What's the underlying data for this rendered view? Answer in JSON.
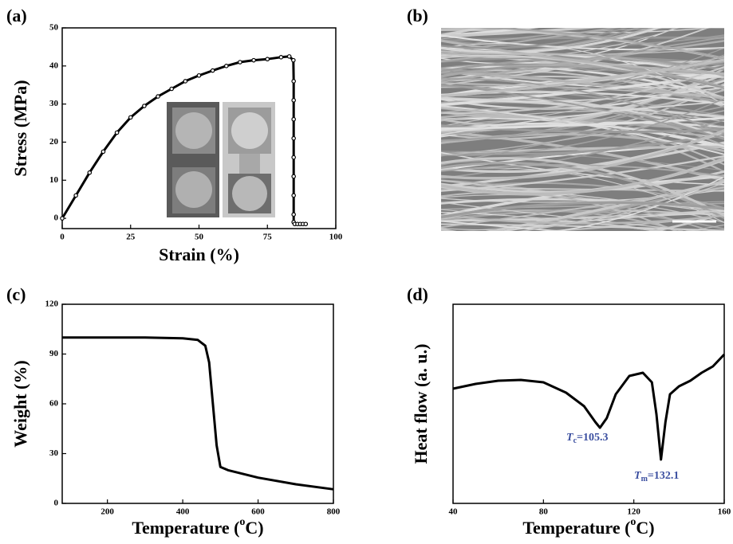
{
  "chart_data": [
    {
      "type": "line",
      "panel": "(a)",
      "xlabel": "Strain (%)",
      "ylabel": "Stress (MPa)",
      "color": "#000000",
      "markers": true,
      "x": [
        0,
        5,
        10,
        15,
        20,
        25,
        30,
        35,
        40,
        45,
        50,
        55,
        60,
        65,
        70,
        75,
        80,
        83,
        84.5,
        84.6,
        84.6,
        84.6,
        84.6,
        84.6,
        84.6,
        84.6,
        84.6,
        84.6,
        85,
        86,
        87,
        88,
        89
      ],
      "values": [
        0,
        6,
        12,
        17.5,
        22.5,
        26.5,
        29.5,
        32,
        34,
        36,
        37.5,
        38.8,
        40,
        41,
        41.5,
        41.8,
        42.3,
        42.5,
        41.5,
        36,
        31,
        26,
        21,
        16,
        11,
        6,
        1,
        -1,
        -1.5,
        -1.5,
        -1.5,
        -1.5,
        -1.5
      ],
      "xlim": [
        0,
        100
      ],
      "ylim": [
        -2.7,
        50
      ],
      "xticks": [
        0,
        25,
        50,
        75,
        100
      ],
      "yticks": [
        0,
        10,
        20,
        30,
        40,
        50
      ]
    },
    {
      "type": "image",
      "panel": "(b)"
    },
    {
      "type": "line",
      "panel": "(c)",
      "xlabel": {
        "text": "Temperature (",
        "sup": "o",
        "after": "C)"
      },
      "ylabel": "Weight (%)",
      "color": "#000000",
      "markers": false,
      "x": [
        80,
        200,
        300,
        400,
        440,
        460,
        470,
        480,
        490,
        500,
        520,
        600,
        700,
        800
      ],
      "values": [
        100,
        100,
        100,
        99.5,
        98.5,
        95,
        85,
        60,
        35,
        22,
        20,
        15.5,
        11.5,
        8.5
      ],
      "xlim": [
        80,
        800
      ],
      "ylim": [
        0,
        120
      ],
      "xticks": [
        200,
        400,
        600,
        800
      ],
      "yticks": [
        0,
        30,
        60,
        90,
        120
      ]
    },
    {
      "type": "line",
      "panel": "(d)",
      "xlabel": {
        "text": "Temperature (",
        "sup": "o",
        "after": "C)"
      },
      "ylabel": "Heat flow (a. u.)",
      "color": "#000000",
      "markers": false,
      "x": [
        40,
        50,
        60,
        70,
        80,
        90,
        98,
        103,
        105,
        108,
        112,
        118,
        124,
        128,
        130,
        132,
        134,
        136,
        140,
        145,
        150,
        155,
        160
      ],
      "values": [
        57.6,
        60,
        61.6,
        62,
        60.8,
        55.6,
        48.8,
        40.8,
        38,
        42.8,
        54.8,
        64,
        65.6,
        60.8,
        44.8,
        22,
        40.8,
        54.8,
        58.8,
        61.6,
        65.6,
        68.8,
        74.8
      ],
      "xlim": [
        40,
        160
      ],
      "ylim": [
        0,
        100
      ],
      "xticks": [
        40,
        80,
        120,
        160
      ],
      "annotation_color": "#3b4fa0",
      "annotations": [
        {
          "symbol": "T",
          "sub": "c",
          "text": "=105.3"
        },
        {
          "symbol": "T",
          "sub": "m",
          "text": "=132.1"
        }
      ]
    }
  ]
}
